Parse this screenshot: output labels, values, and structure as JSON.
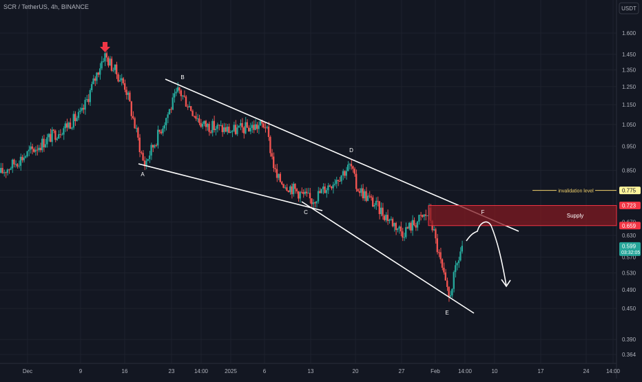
{
  "header": {
    "symbol_title": "SCR / TetherUS, 4h, BINANCE"
  },
  "currency": "USDT",
  "colors": {
    "background": "#131722",
    "grid": "#1e222d",
    "axis_text": "#b2b5be",
    "up_candle": "#26a69a",
    "down_candle": "#ef5350",
    "marker": "#f23645",
    "supply_fill": "#801922",
    "supply_border": "#f23645",
    "invalidation_line": "#f5d46d",
    "invalidation_tag": "#fff59d",
    "drawing": "#ffffff",
    "current_price_tag": "#26a69a"
  },
  "chart_data": {
    "type": "candlestick",
    "title": "SCR / TetherUS, 4h, BINANCE",
    "y_axis": {
      "scale": "log",
      "ticks": [
        "1.600",
        "1.450",
        "1.350",
        "1.250",
        "1.150",
        "1.050",
        "0.950",
        "0.850",
        "0.775",
        "0.670",
        "0.630",
        "0.570",
        "0.530",
        "0.490",
        "0.450",
        "0.390",
        "0.364"
      ],
      "range": [
        0.33,
        1.85
      ]
    },
    "x_axis": {
      "ticks": [
        "Dec",
        "9",
        "16",
        "23",
        "14:00",
        "2025",
        "6",
        "13",
        "20",
        "27",
        "Feb",
        "14:00",
        "10",
        "17",
        "24",
        "14:00"
      ]
    },
    "price_path": {
      "note_series": "approximate close levels",
      "points": [
        {
          "x": "Dec",
          "close": 0.84
        },
        {
          "x": "9",
          "close": 1.1
        },
        {
          "x": "Dec 10",
          "close": 1.45
        },
        {
          "x": "16",
          "close": 1.25
        },
        {
          "x": "Dec 19",
          "close": 0.87
        },
        {
          "x": "23",
          "close": 1.23
        },
        {
          "x": "14:00",
          "close": 1.05
        },
        {
          "x": "2025",
          "close": 1.02
        },
        {
          "x": "6",
          "close": 1.05
        },
        {
          "x": "Jan 9",
          "close": 0.82
        },
        {
          "x": "13",
          "close": 0.74
        },
        {
          "x": "Jan 18",
          "close": 0.87
        },
        {
          "x": "20",
          "close": 0.79
        },
        {
          "x": "27",
          "close": 0.64
        },
        {
          "x": "Jan 31",
          "close": 0.7
        },
        {
          "x": "Feb 3",
          "close": 0.47
        },
        {
          "x": "Feb",
          "close": 0.599
        }
      ]
    },
    "tags": [
      {
        "label": "0.775",
        "type": "invalidation"
      },
      {
        "label": "0.723",
        "type": "supply_top"
      },
      {
        "label": "0.659",
        "type": "supply_bottom"
      },
      {
        "label": "0.599",
        "sublabel": "03:32:05",
        "type": "current_price"
      }
    ],
    "annotations": {
      "invalidation_label": "invalidation level",
      "invalidation_value": 0.775,
      "supply_label": "Supply",
      "supply_top": 0.723,
      "supply_bottom": 0.659,
      "wave_labels": [
        "A",
        "B",
        "C",
        "D",
        "E",
        "F"
      ]
    }
  }
}
